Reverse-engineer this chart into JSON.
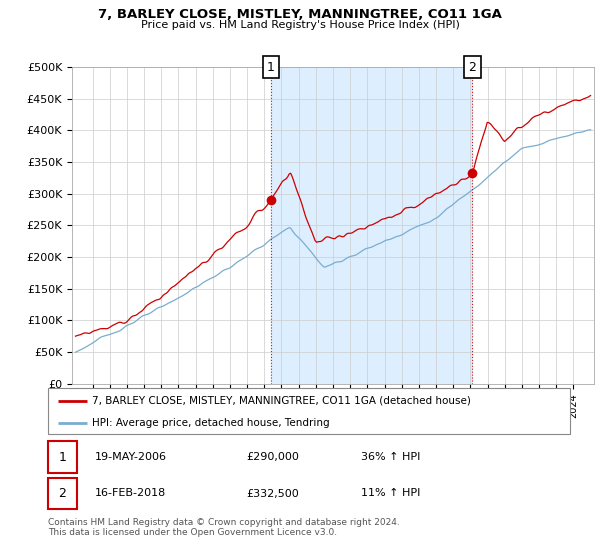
{
  "title": "7, BARLEY CLOSE, MISTLEY, MANNINGTREE, CO11 1GA",
  "subtitle": "Price paid vs. HM Land Registry's House Price Index (HPI)",
  "ylabel_ticks": [
    "£0",
    "£50K",
    "£100K",
    "£150K",
    "£200K",
    "£250K",
    "£300K",
    "£350K",
    "£400K",
    "£450K",
    "£500K"
  ],
  "ytick_values": [
    0,
    50000,
    100000,
    150000,
    200000,
    250000,
    300000,
    350000,
    400000,
    450000,
    500000
  ],
  "sale1_year": 2006.38,
  "sale1_price": 290000,
  "sale1_date": "19-MAY-2006",
  "sale1_pct": "36% ↑ HPI",
  "sale2_year": 2018.12,
  "sale2_price": 332500,
  "sale2_date": "16-FEB-2018",
  "sale2_pct": "11% ↑ HPI",
  "red_color": "#cc0000",
  "blue_color": "#7aadce",
  "shade_color": "#ddeeff",
  "legend_red": "7, BARLEY CLOSE, MISTLEY, MANNINGTREE, CO11 1GA (detached house)",
  "legend_blue": "HPI: Average price, detached house, Tendring",
  "footer": "Contains HM Land Registry data © Crown copyright and database right 2024.\nThis data is licensed under the Open Government Licence v3.0.",
  "background_color": "#ffffff",
  "grid_color": "#cccccc"
}
